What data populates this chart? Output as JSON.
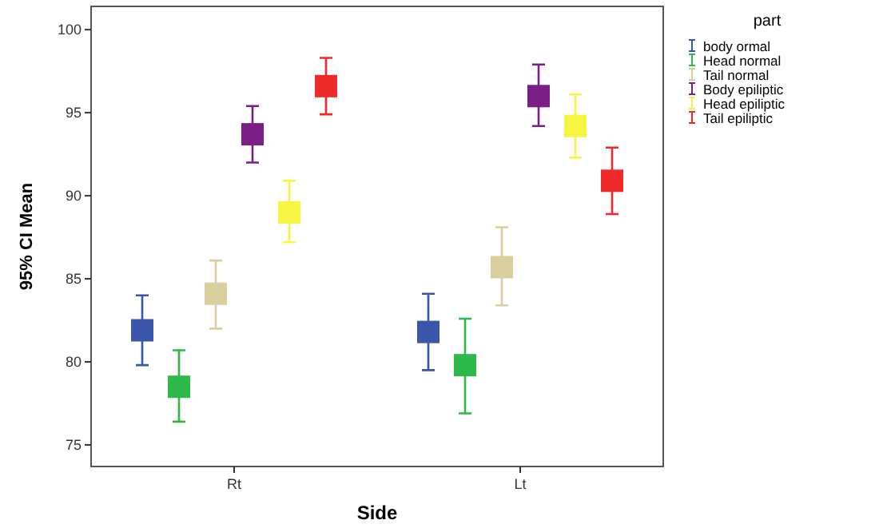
{
  "chart_data": {
    "type": "scatter",
    "xlabel": "Side",
    "ylabel": "95% CI Mean",
    "legend_title": "part",
    "categories": [
      "Rt",
      "Lt"
    ],
    "ylim": [
      73.7,
      101.4
    ],
    "yticks": [
      75,
      80,
      85,
      90,
      95,
      100
    ],
    "grid": false,
    "legend": "top right",
    "marker": "square",
    "series": [
      {
        "name": "body ormal",
        "color": "#3a56a8",
        "values": [
          81.9,
          81.8
        ],
        "errors": [
          [
            79.8,
            84.0
          ],
          [
            79.5,
            84.1
          ]
        ]
      },
      {
        "name": "Head normal",
        "color": "#2db84a",
        "values": [
          78.5,
          79.8
        ],
        "errors": [
          [
            76.4,
            80.7
          ],
          [
            76.9,
            82.6
          ]
        ]
      },
      {
        "name": "Tail normal",
        "color": "#d8cf9c",
        "values": [
          84.1,
          85.7
        ],
        "errors": [
          [
            82.0,
            86.1
          ],
          [
            83.4,
            88.1
          ]
        ]
      },
      {
        "name": "Body epiliptic",
        "color": "#7b1f86",
        "values": [
          93.7,
          96.0
        ],
        "errors": [
          [
            92.0,
            95.4
          ],
          [
            94.2,
            97.9
          ]
        ]
      },
      {
        "name": "Head epiliptic",
        "color": "#f5f542",
        "values": [
          89.0,
          94.2
        ],
        "errors": [
          [
            87.2,
            90.9
          ],
          [
            92.3,
            96.1
          ]
        ]
      },
      {
        "name": "Tail epiliptic",
        "color": "#ee2a2a",
        "values": [
          96.6,
          90.9
        ],
        "errors": [
          [
            94.9,
            98.3
          ],
          [
            88.9,
            92.9
          ]
        ]
      }
    ]
  }
}
